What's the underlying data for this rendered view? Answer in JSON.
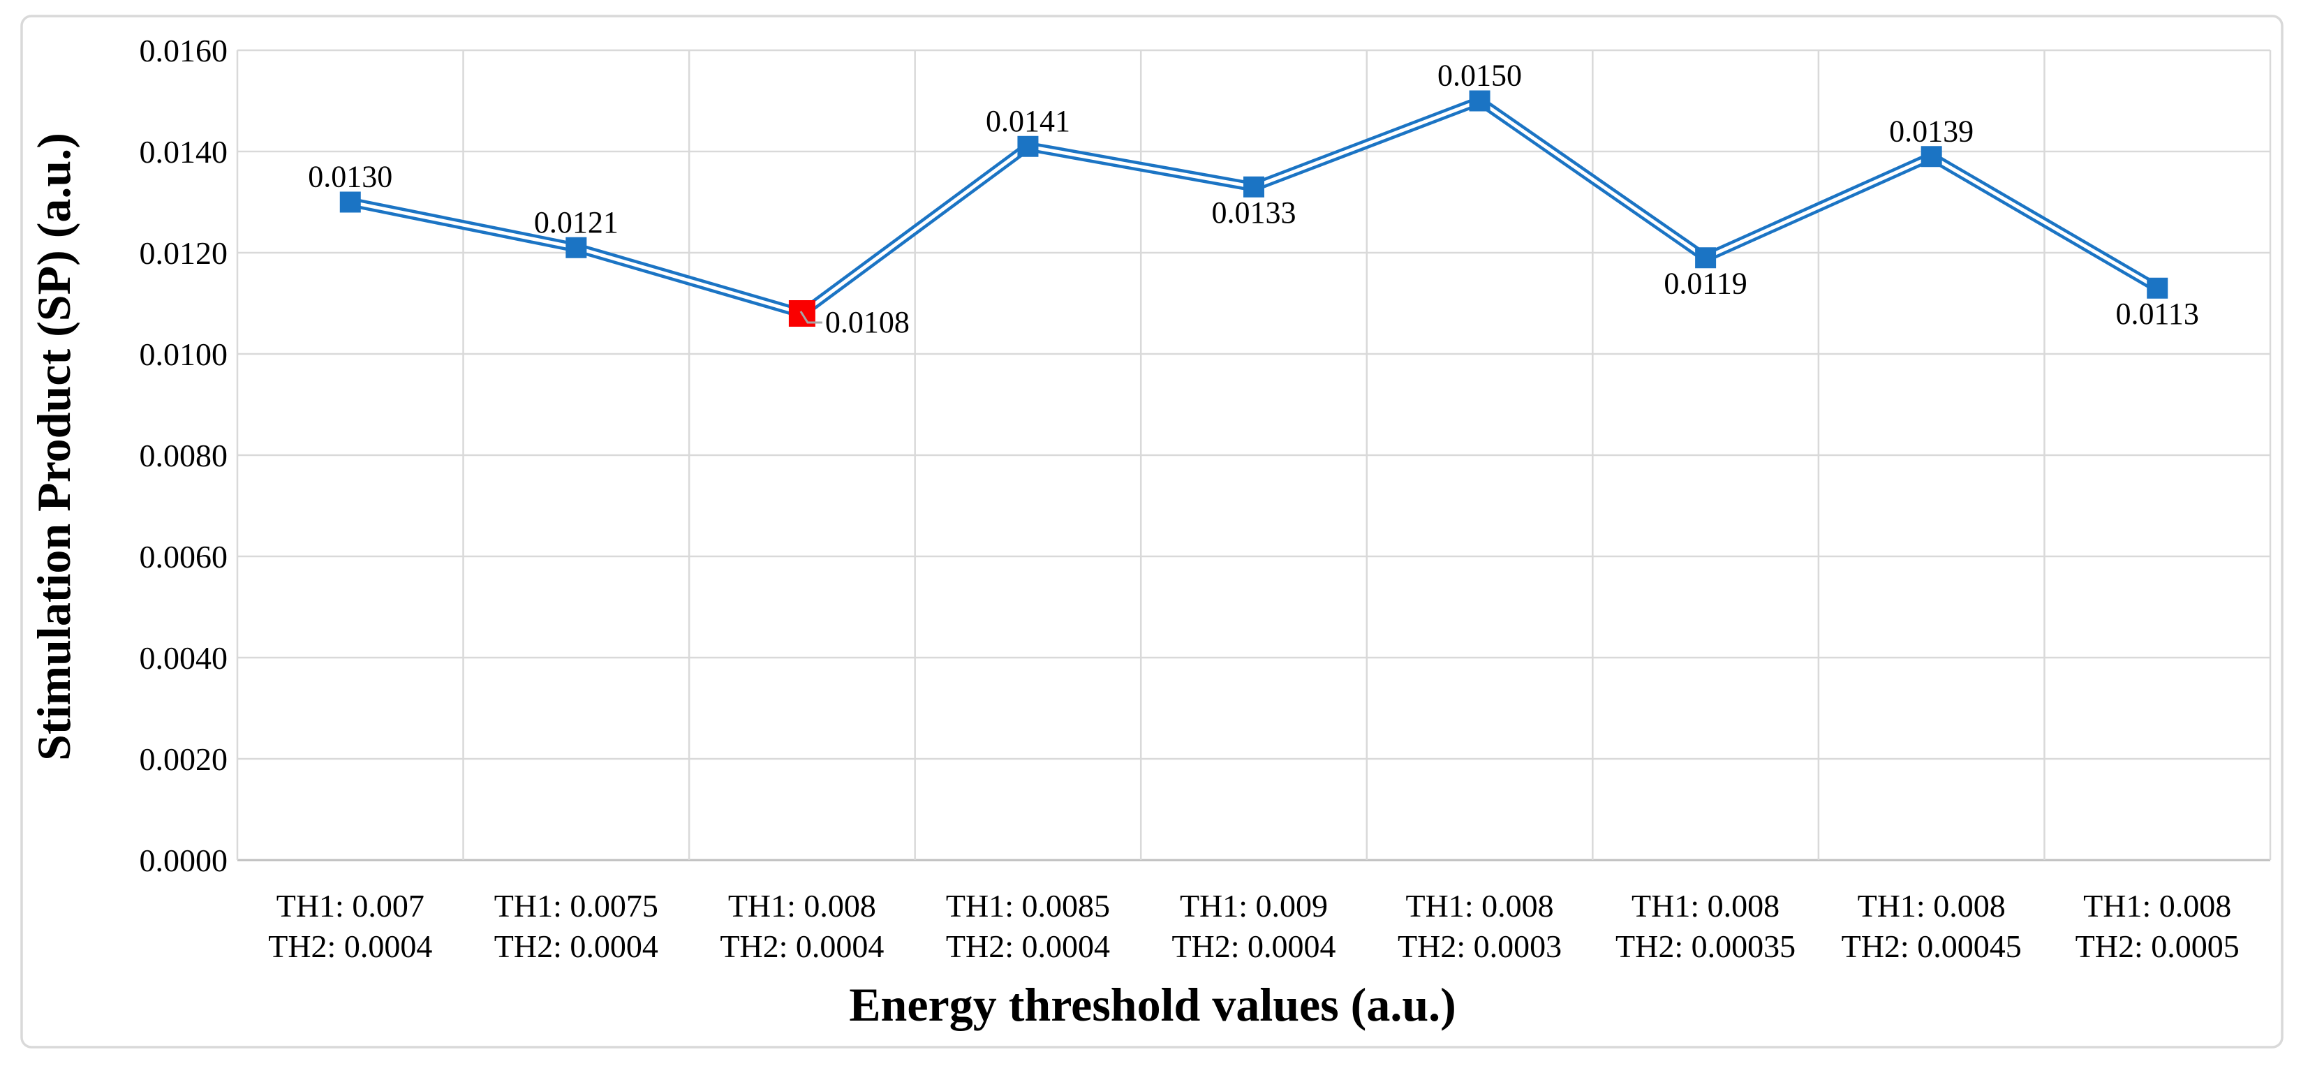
{
  "chart_data": {
    "type": "line",
    "title": "",
    "xlabel": "Energy threshold values (a.u.)",
    "ylabel": "Stimulation Product (SP) (a.u.)",
    "categories": [
      [
        "TH1: 0.007",
        "TH2: 0.0004"
      ],
      [
        "TH1: 0.0075",
        "TH2: 0.0004"
      ],
      [
        "TH1: 0.008",
        "TH2: 0.0004"
      ],
      [
        "TH1: 0.0085",
        "TH2: 0.0004"
      ],
      [
        "TH1: 0.009",
        "TH2: 0.0004"
      ],
      [
        "TH1: 0.008",
        "TH2: 0.0003"
      ],
      [
        "TH1: 0.008",
        "TH2: 0.00035"
      ],
      [
        "TH1: 0.008",
        "TH2: 0.00045"
      ],
      [
        "TH1: 0.008",
        "TH2: 0.0005"
      ]
    ],
    "series": [
      {
        "name": "Stimulation Product (SP)",
        "values": [
          0.013,
          0.0121,
          0.0108,
          0.0141,
          0.0133,
          0.015,
          0.0119,
          0.0139,
          0.0113
        ],
        "labels": [
          "0.0130",
          "0.0121",
          "0.0108",
          "0.0141",
          "0.0133",
          "0.0150",
          "0.0119",
          "0.0139",
          "0.0113"
        ],
        "label_positions": [
          "above",
          "above",
          "right",
          "above",
          "below",
          "above",
          "below",
          "above",
          "below"
        ],
        "highlight_index": 2
      }
    ],
    "yticks": [
      "0.0000",
      "0.0020",
      "0.0040",
      "0.0060",
      "0.0080",
      "0.0100",
      "0.0120",
      "0.0140",
      "0.0160"
    ],
    "ylim": [
      0,
      0.016
    ],
    "grid": true,
    "legend": "none",
    "marker": "square",
    "line_style": "double",
    "colors": {
      "series": "#1b74c4",
      "highlight": "#fa0000",
      "gridline": "#d9d9d9",
      "axis_line": "#bfbfbf",
      "leader_line": "#a6a6a6",
      "text": "#000000",
      "background": "#ffffff",
      "border": "#d9d9d9"
    }
  }
}
